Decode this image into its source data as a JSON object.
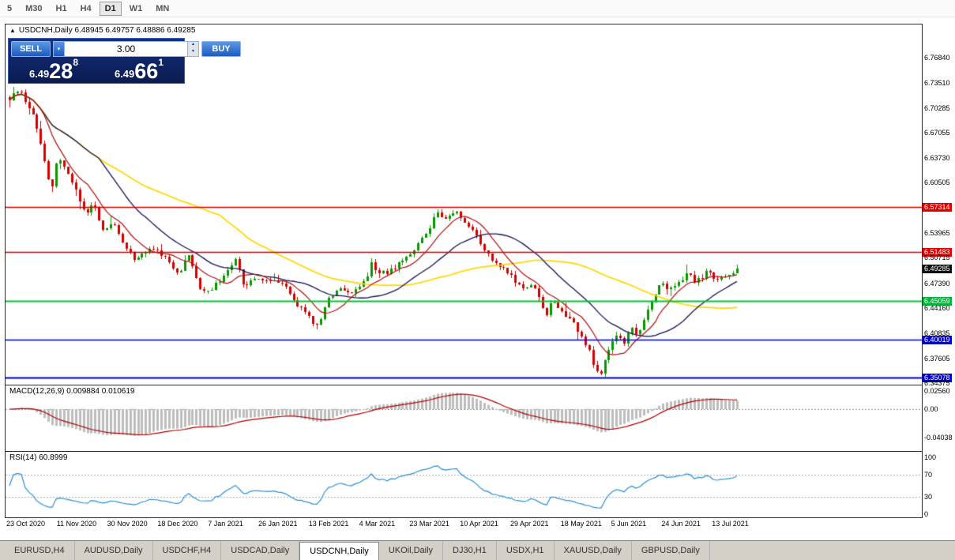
{
  "toolbar": {
    "timeframes": [
      {
        "label": "5",
        "active": false
      },
      {
        "label": "M30",
        "active": false
      },
      {
        "label": "H1",
        "active": false
      },
      {
        "label": "H4",
        "active": false
      },
      {
        "label": "D1",
        "active": true
      },
      {
        "label": "W1",
        "active": false
      },
      {
        "label": "MN",
        "active": false
      }
    ]
  },
  "chart": {
    "collapse_arrow": "▲",
    "title_text": "USDCNH,Daily 6.48945 6.49757 6.48886 6.49285",
    "trade_panel": {
      "sell_label": "SELL",
      "buy_label": "BUY",
      "volume": "3.00",
      "bid": {
        "main": "6.49",
        "big": "28",
        "sup": "8"
      },
      "ask": {
        "main": "6.49",
        "big": "66",
        "sup": "1"
      }
    },
    "y_axis": [
      {
        "text": "6.76840",
        "type": "plain"
      },
      {
        "text": "6.73510",
        "type": "plain"
      },
      {
        "text": "6.70285",
        "type": "plain"
      },
      {
        "text": "6.67055",
        "type": "plain"
      },
      {
        "text": "6.63730",
        "type": "plain"
      },
      {
        "text": "6.60505",
        "type": "plain"
      },
      {
        "text": "6.57314",
        "type": "red"
      },
      {
        "text": "6.53965",
        "type": "plain"
      },
      {
        "text": "6.51483",
        "type": "red"
      },
      {
        "text": "6.50715",
        "type": "plain"
      },
      {
        "text": "6.49285",
        "type": "current"
      },
      {
        "text": "6.47390",
        "type": "plain"
      },
      {
        "text": "6.45059",
        "type": "green"
      },
      {
        "text": "6.44160",
        "type": "plain"
      },
      {
        "text": "6.40835",
        "type": "plain"
      },
      {
        "text": "6.40019",
        "type": "blue"
      },
      {
        "text": "6.37605",
        "type": "plain"
      },
      {
        "text": "6.35078",
        "type": "blue"
      },
      {
        "text": "6.34375",
        "type": "plain"
      }
    ]
  },
  "macd": {
    "label": "MACD(12,26,9) 0.009884 0.010619",
    "axis": [
      "0.02560",
      "0.00",
      "-0.04038"
    ]
  },
  "rsi": {
    "label": "RSI(14) 60.8999",
    "axis": [
      "100",
      "70",
      "30",
      "0"
    ]
  },
  "dates": [
    "23 Oct 2020",
    "11 Nov 2020",
    "30 Nov 2020",
    "18 Dec 2020",
    "7 Jan 2021",
    "26 Jan 2021",
    "13 Feb 2021",
    "4 Mar 2021",
    "23 Mar 2021",
    "10 Apr 2021",
    "29 Apr 2021",
    "18 May 2021",
    "5 Jun 2021",
    "24 Jun 2021",
    "13 Jul 2021"
  ],
  "tabs": [
    {
      "label": "EURUSD,H4",
      "active": false
    },
    {
      "label": "AUDUSD,Daily",
      "active": false
    },
    {
      "label": "USDCHF,H4",
      "active": false
    },
    {
      "label": "USDCAD,Daily",
      "active": false
    },
    {
      "label": "USDCNH,Daily",
      "active": true
    },
    {
      "label": "UKOil,Daily",
      "active": false
    },
    {
      "label": "DJ30,H1",
      "active": false
    },
    {
      "label": "USDX,H1",
      "active": false
    },
    {
      "label": "XAUUSD,Daily",
      "active": false
    },
    {
      "label": "GBPUSD,Daily",
      "active": false
    }
  ],
  "chart_data": {
    "type": "candlestick",
    "symbol": "USDCNH",
    "timeframe": "Daily",
    "ohlc": {
      "open": 6.48945,
      "high": 6.49757,
      "low": 6.48886,
      "close": 6.49285
    },
    "bid_display": "6.49 28 8",
    "ask_display": "6.49 66 1",
    "y_axis_range": [
      6.34375,
      6.7684
    ],
    "candle_count": 188,
    "levels": [
      {
        "price": 6.57314,
        "color": "red"
      },
      {
        "price": 6.51483,
        "color": "red"
      },
      {
        "price": 6.45059,
        "color": "green"
      },
      {
        "price": 6.40019,
        "color": "blue"
      },
      {
        "price": 6.35078,
        "color": "blue"
      }
    ],
    "x_labels": [
      "23 Oct 2020",
      "11 Nov 2020",
      "30 Nov 2020",
      "18 Dec 2020",
      "7 Jan 2021",
      "26 Jan 2021",
      "13 Feb 2021",
      "4 Mar 2021",
      "23 Mar 2021",
      "10 Apr 2021",
      "29 Apr 2021",
      "18 May 2021",
      "5 Jun 2021",
      "24 Jun 2021",
      "13 Jul 2021"
    ],
    "price_path": [
      [
        0.0,
        6.715
      ],
      [
        0.013,
        6.728
      ],
      [
        0.033,
        6.69
      ],
      [
        0.044,
        6.655
      ],
      [
        0.052,
        6.612
      ],
      [
        0.058,
        6.598
      ],
      [
        0.066,
        6.637
      ],
      [
        0.079,
        6.62
      ],
      [
        0.093,
        6.59
      ],
      [
        0.104,
        6.565
      ],
      [
        0.115,
        6.578
      ],
      [
        0.126,
        6.545
      ],
      [
        0.142,
        6.553
      ],
      [
        0.158,
        6.525
      ],
      [
        0.173,
        6.505
      ],
      [
        0.186,
        6.517
      ],
      [
        0.202,
        6.52
      ],
      [
        0.219,
        6.5
      ],
      [
        0.232,
        6.488
      ],
      [
        0.246,
        6.51
      ],
      [
        0.26,
        6.47
      ],
      [
        0.273,
        6.463
      ],
      [
        0.29,
        6.478
      ],
      [
        0.304,
        6.495
      ],
      [
        0.311,
        6.505
      ],
      [
        0.322,
        6.47
      ],
      [
        0.337,
        6.482
      ],
      [
        0.35,
        6.476
      ],
      [
        0.363,
        6.481
      ],
      [
        0.377,
        6.47
      ],
      [
        0.391,
        6.452
      ],
      [
        0.404,
        6.437
      ],
      [
        0.415,
        6.425
      ],
      [
        0.424,
        6.417
      ],
      [
        0.435,
        6.447
      ],
      [
        0.446,
        6.462
      ],
      [
        0.457,
        6.47
      ],
      [
        0.468,
        6.46
      ],
      [
        0.479,
        6.468
      ],
      [
        0.49,
        6.477
      ],
      [
        0.497,
        6.5
      ],
      [
        0.505,
        6.49
      ],
      [
        0.516,
        6.487
      ],
      [
        0.527,
        6.494
      ],
      [
        0.538,
        6.503
      ],
      [
        0.549,
        6.513
      ],
      [
        0.56,
        6.523
      ],
      [
        0.571,
        6.537
      ],
      [
        0.579,
        6.55
      ],
      [
        0.588,
        6.568
      ],
      [
        0.597,
        6.556
      ],
      [
        0.605,
        6.563
      ],
      [
        0.614,
        6.569
      ],
      [
        0.623,
        6.556
      ],
      [
        0.634,
        6.548
      ],
      [
        0.645,
        6.53
      ],
      [
        0.656,
        6.513
      ],
      [
        0.667,
        6.5
      ],
      [
        0.678,
        6.493
      ],
      [
        0.689,
        6.483
      ],
      [
        0.699,
        6.472
      ],
      [
        0.71,
        6.465
      ],
      [
        0.719,
        6.473
      ],
      [
        0.728,
        6.455
      ],
      [
        0.737,
        6.432
      ],
      [
        0.745,
        6.452
      ],
      [
        0.754,
        6.443
      ],
      [
        0.763,
        6.434
      ],
      [
        0.772,
        6.425
      ],
      [
        0.78,
        6.415
      ],
      [
        0.789,
        6.4
      ],
      [
        0.798,
        6.382
      ],
      [
        0.804,
        6.362
      ],
      [
        0.811,
        6.352
      ],
      [
        0.82,
        6.382
      ],
      [
        0.828,
        6.398
      ],
      [
        0.837,
        6.408
      ],
      [
        0.846,
        6.397
      ],
      [
        0.855,
        6.417
      ],
      [
        0.863,
        6.407
      ],
      [
        0.872,
        6.428
      ],
      [
        0.881,
        6.447
      ],
      [
        0.89,
        6.466
      ],
      [
        0.898,
        6.477
      ],
      [
        0.907,
        6.464
      ],
      [
        0.916,
        6.472
      ],
      [
        0.925,
        6.48
      ],
      [
        0.933,
        6.49
      ],
      [
        0.942,
        6.475
      ],
      [
        0.951,
        6.482
      ],
      [
        0.96,
        6.49
      ],
      [
        0.969,
        6.476
      ],
      [
        0.977,
        6.482
      ],
      [
        0.986,
        6.486
      ],
      [
        1.0,
        6.493
      ]
    ],
    "indicators": {
      "macd": {
        "params": "12,26,9",
        "value": 0.009884,
        "signal": 0.010619,
        "axis_max": 0.0256,
        "axis_min": -0.04038
      },
      "rsi": {
        "params": "14",
        "value": 60.8999,
        "levels": [
          70,
          30
        ],
        "axis": [
          100,
          70,
          30,
          0
        ]
      }
    }
  }
}
